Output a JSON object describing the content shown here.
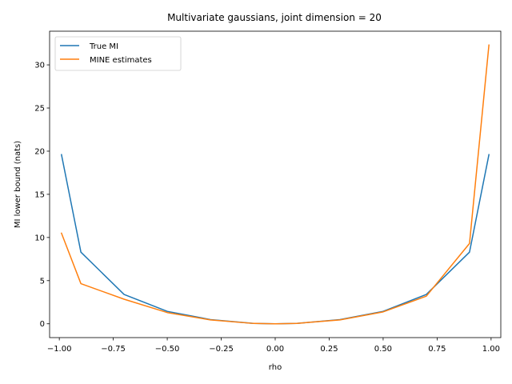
{
  "chart_data": {
    "type": "line",
    "title": "Multivariate gaussians, joint dimension = 20",
    "xlabel": "rho",
    "ylabel": "MI lower bound (nats)",
    "xlim": [
      -1.045,
      1.045
    ],
    "ylim": [
      -1.6,
      33.9
    ],
    "xticks": [
      -1.0,
      -0.75,
      -0.5,
      -0.25,
      0.0,
      0.25,
      0.5,
      0.75,
      1.0
    ],
    "xtick_labels": [
      "−1.00",
      "−0.75",
      "−0.50",
      "−0.25",
      "0.00",
      "0.25",
      "0.50",
      "0.75",
      "1.00"
    ],
    "yticks": [
      0,
      5,
      10,
      15,
      20,
      25,
      30
    ],
    "ytick_labels": [
      "0",
      "5",
      "10",
      "15",
      "20",
      "25",
      "30"
    ],
    "grid": false,
    "legend_position": "top-left",
    "x": [
      -0.99,
      -0.9,
      -0.7,
      -0.5,
      -0.3,
      -0.1,
      0.0,
      0.1,
      0.3,
      0.5,
      0.7,
      0.9,
      0.99
    ],
    "series": [
      {
        "name": "True MI",
        "color": "#1f77b4",
        "values": [
          19.6,
          8.3,
          3.4,
          1.44,
          0.49,
          0.05,
          0.0,
          0.05,
          0.49,
          1.44,
          3.4,
          8.3,
          19.6
        ]
      },
      {
        "name": "MINE estimates",
        "color": "#ff7f0e",
        "values": [
          10.5,
          4.65,
          2.85,
          1.3,
          0.45,
          0.04,
          0.0,
          0.05,
          0.45,
          1.38,
          3.2,
          9.3,
          32.3
        ]
      }
    ]
  }
}
